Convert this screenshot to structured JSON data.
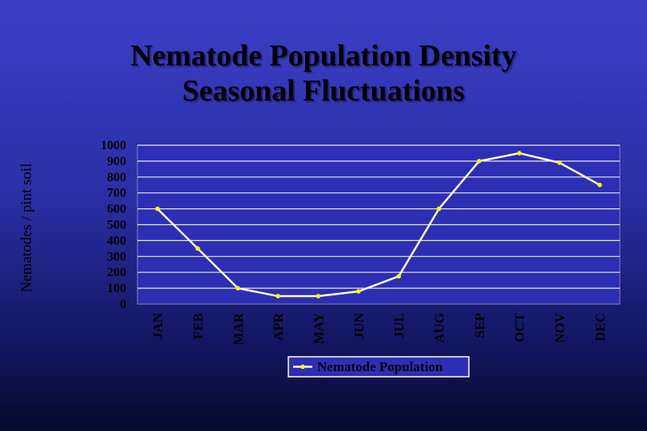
{
  "chart_data": {
    "type": "line",
    "title": "Nematode Population Density Seasonal Fluctuations",
    "title_lines": [
      "Nematode Population Density",
      "Seasonal Fluctuations"
    ],
    "xlabel": "",
    "ylabel": "Nematodes / pint soil",
    "categories": [
      "JAN",
      "FEB",
      "MAR",
      "APR",
      "MAY",
      "JUN",
      "JUL",
      "AUG",
      "SEP",
      "OCT",
      "NOV",
      "DEC"
    ],
    "series": [
      {
        "name": "Nematode Population",
        "values": [
          600,
          350,
          100,
          50,
          50,
          80,
          175,
          600,
          900,
          950,
          890,
          750
        ]
      }
    ],
    "ylim": [
      0,
      1000
    ],
    "yticks": [
      0,
      100,
      200,
      300,
      400,
      500,
      600,
      700,
      800,
      900,
      1000
    ],
    "grid": true,
    "legend": "bottom",
    "colors": {
      "line": "#fffcd8",
      "marker": "#ffff00",
      "plot_background": "#2c2fb4",
      "gridline": "#e8e8e8",
      "legend_background": "#2c2fb4"
    }
  }
}
